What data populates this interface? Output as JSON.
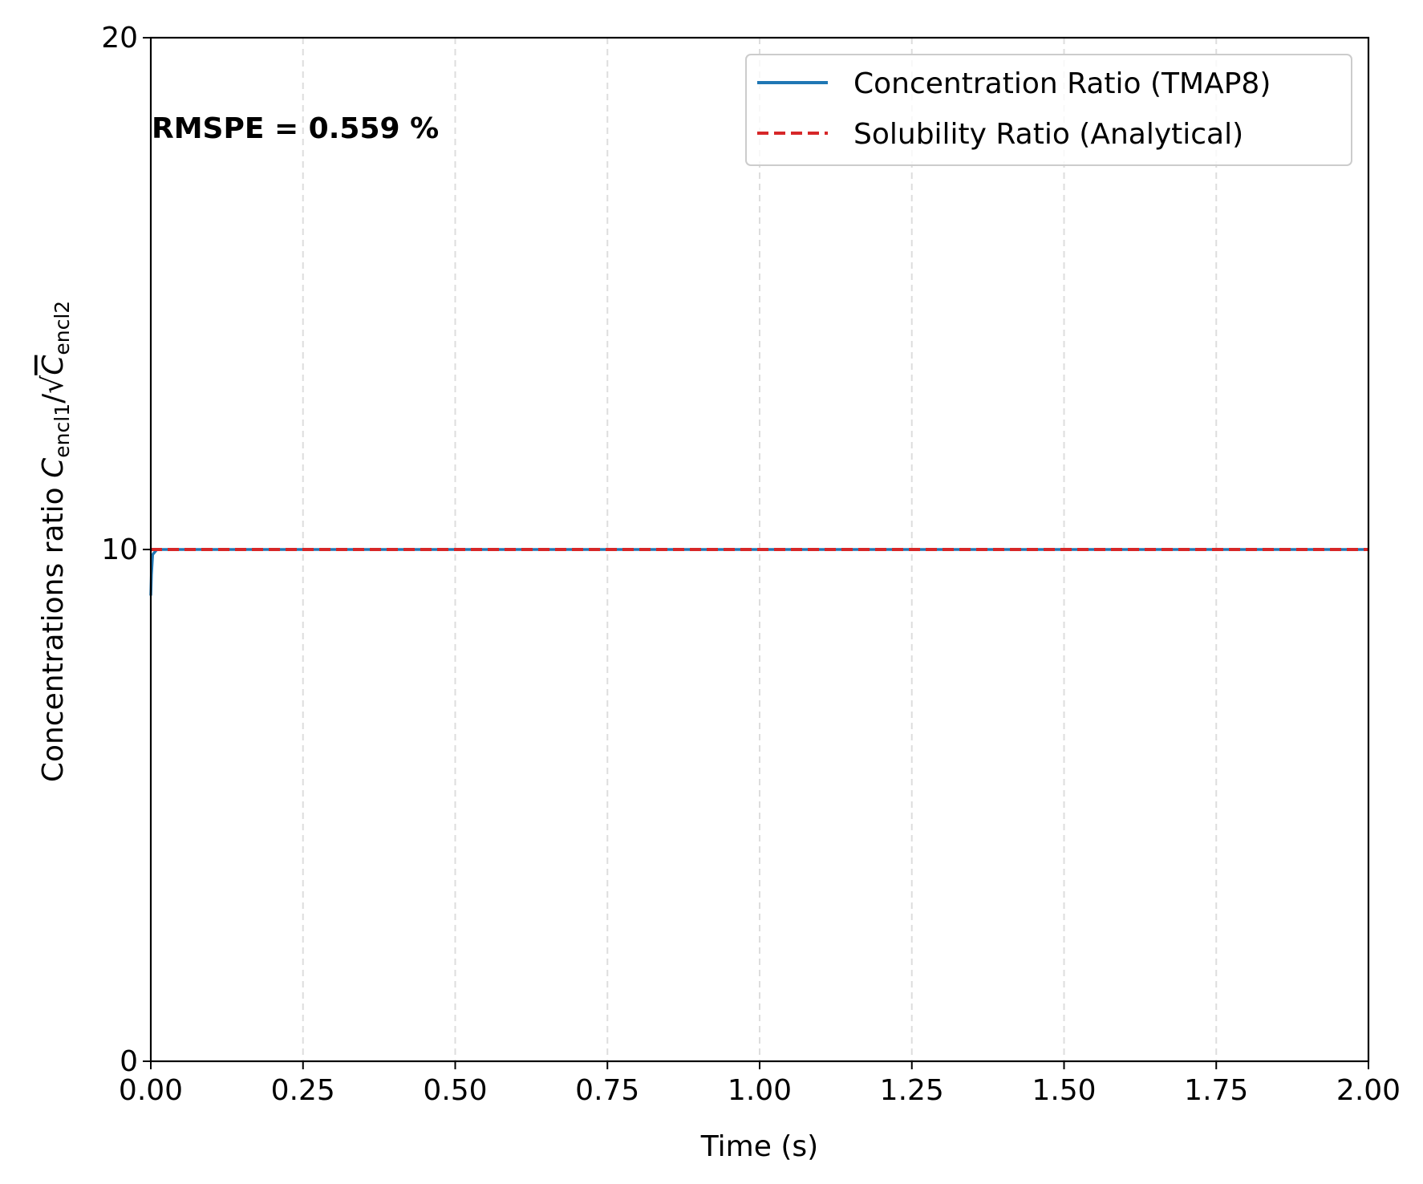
{
  "chart_data": {
    "type": "line",
    "xlabel": "Time (s)",
    "ylabel": "Concentrations ratio C_encl1/√C_encl2",
    "ylabel_parts": {
      "prefix": "Concentrations ratio ",
      "c1": "C",
      "sub1": "encl1",
      "slash": "/",
      "sqrt": "√",
      "c2": "C",
      "sub2": "encl2"
    },
    "xlim": [
      0,
      2
    ],
    "ylim": [
      0,
      20
    ],
    "x_ticks": [
      "0.00",
      "0.25",
      "0.50",
      "0.75",
      "1.00",
      "1.25",
      "1.50",
      "1.75",
      "2.00"
    ],
    "x_tick_values": [
      0,
      0.25,
      0.5,
      0.75,
      1.0,
      1.25,
      1.5,
      1.75,
      2.0
    ],
    "y_ticks": [
      "0",
      "10",
      "20"
    ],
    "y_tick_values": [
      0,
      10,
      20
    ],
    "grid": "vertical dashed",
    "legend_position": "upper right",
    "annotation": "RMSPE = 0.559 %",
    "series": [
      {
        "name": "Concentration Ratio (TMAP8)",
        "color": "#1f77b4",
        "style": "solid",
        "x": [
          0,
          0.001,
          0.003,
          0.01,
          0.05,
          0.25,
          0.5,
          0.75,
          1.0,
          1.25,
          1.5,
          1.75,
          2.0
        ],
        "y": [
          9.1,
          9.5,
          9.9,
          10.0,
          10.0,
          10.0,
          10.0,
          10.0,
          10.0,
          10.0,
          10.0,
          10.0,
          10.0
        ]
      },
      {
        "name": "Solubility Ratio (Analytical)",
        "color": "#d62728",
        "style": "dashed",
        "x": [
          0,
          2.0
        ],
        "y": [
          10.0,
          10.0
        ]
      }
    ]
  }
}
